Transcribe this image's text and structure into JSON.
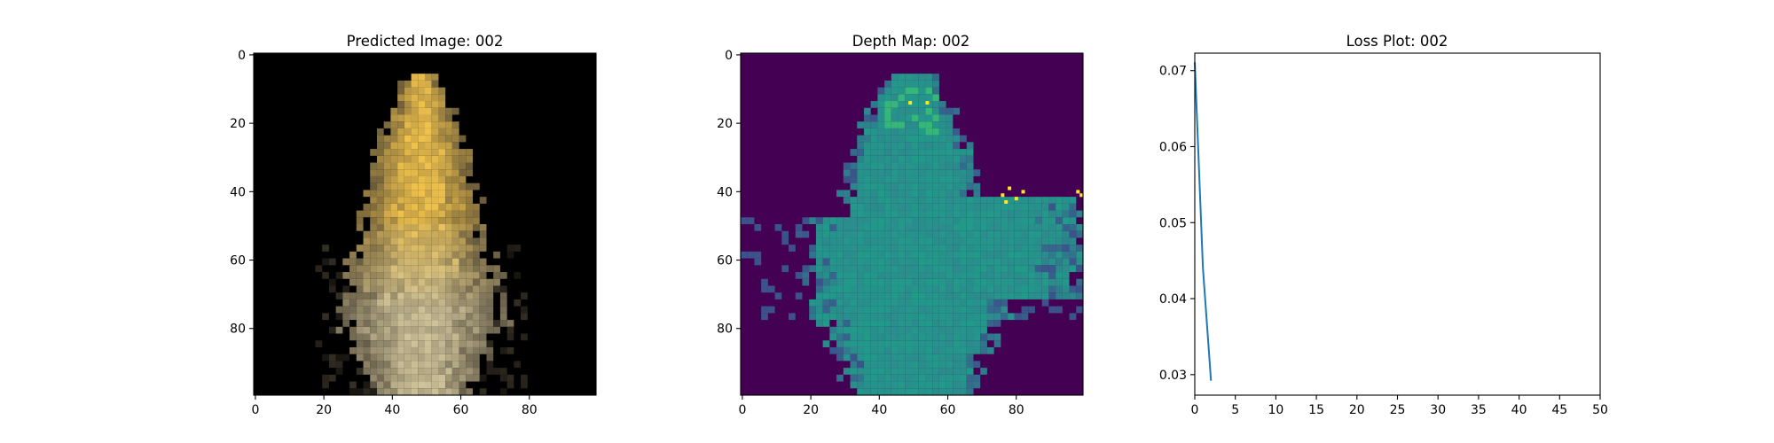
{
  "chart_data": [
    {
      "type": "image",
      "title": "Predicted Image: 002",
      "xlabel": "",
      "ylabel": "",
      "xlim": [
        0,
        100
      ],
      "ylim": [
        100,
        0
      ],
      "xticks": [
        "0",
        "20",
        "40",
        "60",
        "80"
      ],
      "yticks": [
        "0",
        "20",
        "40",
        "60",
        "80"
      ],
      "grid": false,
      "content": "pixelated yellow/golden bell-shaped object on black background",
      "colors": {
        "background": "#000000",
        "bright": "#f0c24c",
        "pale": "#cfc39a",
        "dim": "#4d4536"
      }
    },
    {
      "type": "heatmap",
      "title": "Depth Map: 002",
      "xlabel": "",
      "ylabel": "",
      "xlim": [
        0,
        100
      ],
      "ylim": [
        100,
        0
      ],
      "xticks": [
        "0",
        "20",
        "40",
        "60",
        "80"
      ],
      "yticks": [
        "0",
        "20",
        "40",
        "60",
        "80"
      ],
      "grid": false,
      "colormap": "viridis",
      "colors": {
        "background": "#440154",
        "body": "#2a8c8c",
        "teal": "#1f9e89",
        "edge": "#3b528b",
        "highlight": "#35b779",
        "hot": "#fde725"
      }
    },
    {
      "type": "line",
      "title": "Loss Plot: 002",
      "xlabel": "",
      "ylabel": "",
      "xlim": [
        0,
        50
      ],
      "ylim": [
        0.0273,
        0.0723
      ],
      "xticks": [
        "0",
        "5",
        "10",
        "15",
        "20",
        "25",
        "30",
        "35",
        "40",
        "45",
        "50"
      ],
      "yticks": [
        "0.03",
        "0.04",
        "0.05",
        "0.06",
        "0.07"
      ],
      "grid": false,
      "series": [
        {
          "x": [
            0,
            1,
            2
          ],
          "values": [
            0.0711,
            0.0441,
            0.0292
          ],
          "color": "#1f77b4"
        }
      ]
    }
  ]
}
